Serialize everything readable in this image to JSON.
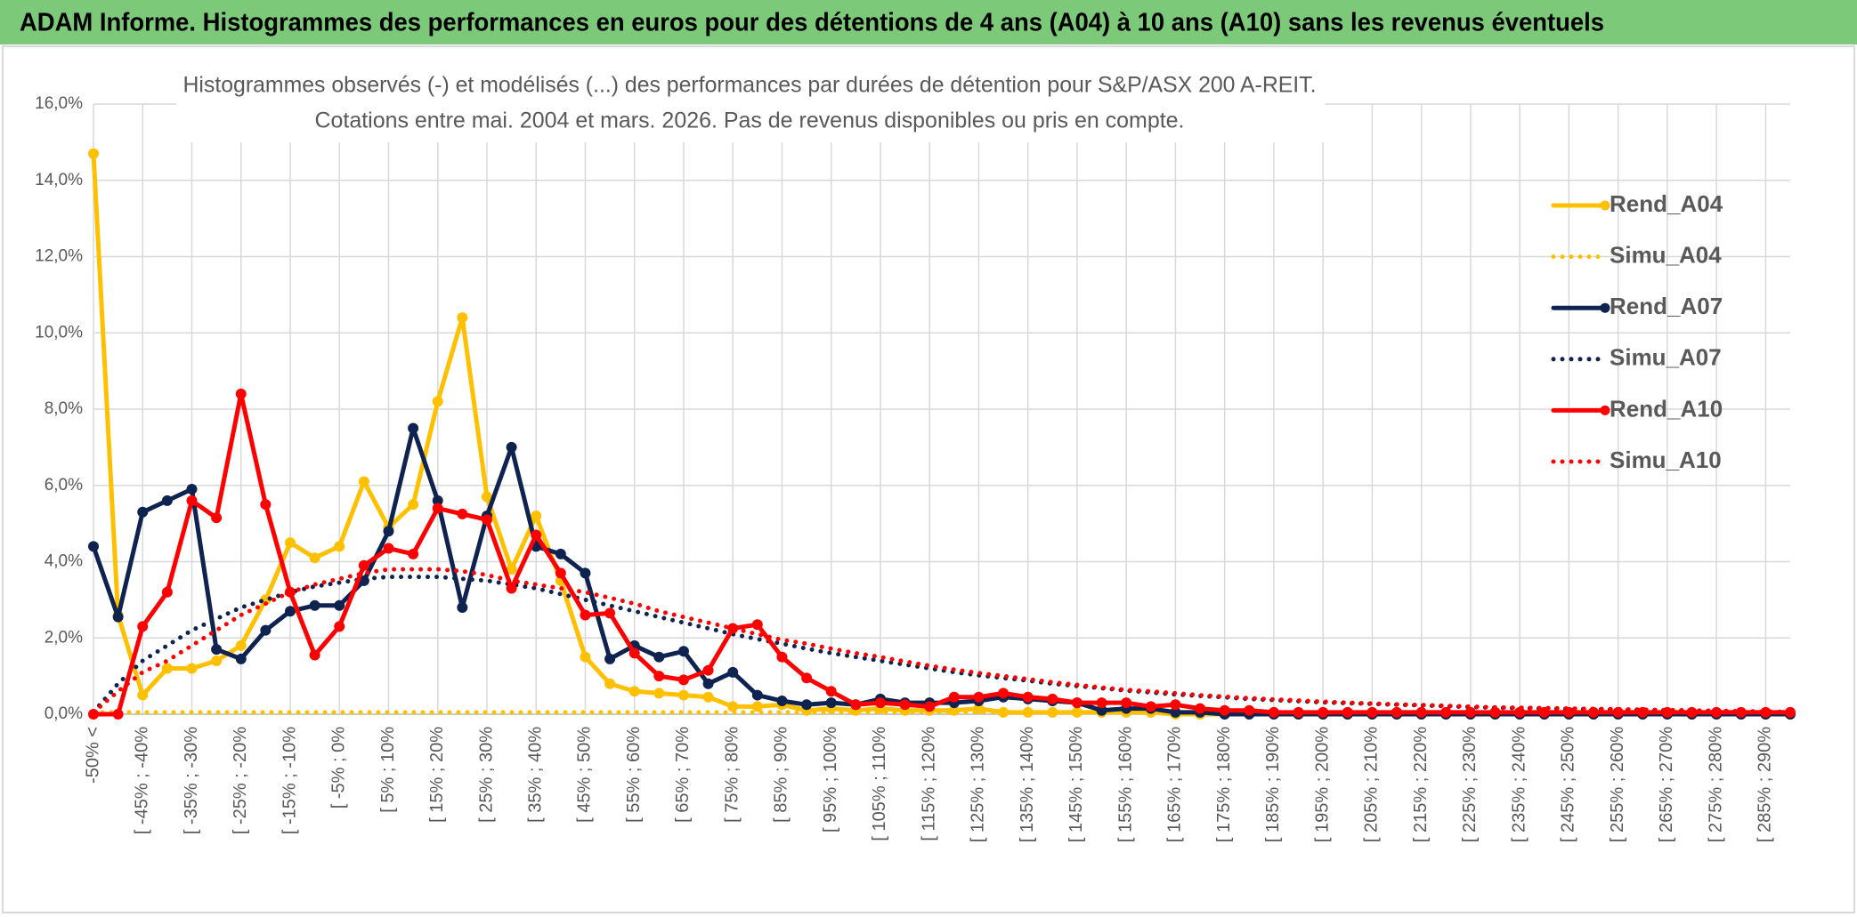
{
  "chart_data": {
    "type": "line",
    "header": "ADAM Informe. Histogrammes des performances en euros pour des détentions de 4 ans (A04) à 10 ans (A10) sans les revenus éventuels",
    "title": "Histogrammes observés (-) et modélisés (...) des performances par durées de détention pour S&P/ASX 200 A-REIT.",
    "subtitle": "Cotations entre mai. 2004 et mars. 2026. Pas de revenus disponibles ou pris en compte.",
    "categories": [
      "-50% <",
      null,
      "[ -45% ; -40%",
      null,
      "[ -35% ; -30%",
      null,
      "[ -25% ; -20%",
      null,
      "[ -15% ; -10%",
      null,
      "[ -5% ; 0%",
      null,
      "[ 5% ; 10%",
      null,
      "[ 15% ; 20%",
      null,
      "[ 25% ; 30%",
      null,
      "[ 35% ; 40%",
      null,
      "[ 45% ; 50%",
      null,
      "[ 55% ; 60%",
      null,
      "[ 65% ; 70%",
      null,
      "[ 75% ; 80%",
      null,
      "[ 85% ; 90%",
      null,
      "[ 95% ; 100%",
      null,
      "[ 105% ; 110%",
      null,
      "[ 115% ; 120%",
      null,
      "[ 125% ; 130%",
      null,
      "[ 135% ; 140%",
      null,
      "[ 145% ; 150%",
      null,
      "[ 155% ; 160%",
      null,
      "[ 165% ; 170%",
      null,
      "[ 175% ; 180%",
      null,
      "[ 185% ; 190%",
      null,
      "[ 195% ; 200%",
      null,
      "[ 205% ; 210%",
      null,
      "[ 215% ; 220%",
      null,
      "[ 225% ; 230%",
      null,
      "[ 235% ; 240%",
      null,
      "[ 245% ; 250%",
      null,
      "[ 255% ; 260%",
      null,
      "[ 265% ; 270%",
      null,
      "[ 275% ; 280%",
      null,
      "[ 285% ; 290%",
      null
    ],
    "series": [
      {
        "name": "Rend_A04",
        "color": "#ffc000",
        "line_style": "solid",
        "markers": true,
        "values": [
          14.7,
          2.6,
          0.5,
          1.2,
          1.2,
          1.4,
          1.8,
          3.0,
          4.5,
          4.1,
          4.4,
          6.1,
          4.9,
          5.5,
          8.2,
          10.4,
          5.7,
          3.8,
          5.2,
          3.5,
          1.5,
          0.8,
          0.6,
          0.55,
          0.5,
          0.45,
          0.2,
          0.2,
          0.25,
          0.1,
          0.15,
          0.1,
          0.15,
          0.1,
          0.1,
          0.1,
          0.15,
          0.05,
          0.05,
          0.05,
          0.05,
          0.05,
          0.05,
          0.05,
          0,
          0,
          0,
          0,
          0,
          0,
          0,
          0,
          0,
          0,
          0,
          0,
          0,
          0,
          0,
          0,
          0,
          0,
          0,
          0,
          0,
          0,
          0,
          0,
          0,
          0
        ]
      },
      {
        "name": "Simu_A04",
        "color": "#ffc000",
        "line_style": "dotted",
        "markers": false,
        "values": [
          0.05,
          0.05,
          0.05,
          0.05,
          0.05,
          0.05,
          0.05,
          0.05,
          0.05,
          0.05,
          0.05,
          0.05,
          0.05,
          0.05,
          0.05,
          0.05,
          0.05,
          0.05,
          0.05,
          0.05,
          0.05,
          0.05,
          0.05,
          0.05,
          0.05,
          0.05,
          0.05,
          0.05,
          0.05,
          0.05,
          0.05,
          0.05,
          0.05,
          0.05,
          0.05,
          0.05,
          0.05,
          0.05,
          0.05,
          0.05,
          0.05,
          0.05,
          0.05,
          0.05,
          0,
          0,
          0,
          0,
          0,
          0,
          0,
          0,
          0,
          0,
          0,
          0,
          0,
          0,
          0,
          0,
          0,
          0,
          0,
          0,
          0,
          0,
          0,
          0,
          0,
          0
        ]
      },
      {
        "name": "Rend_A07",
        "color": "#0f2350",
        "line_style": "solid",
        "markers": true,
        "values": [
          4.4,
          2.55,
          5.3,
          5.6,
          5.9,
          1.7,
          1.45,
          2.2,
          2.7,
          2.85,
          2.85,
          3.5,
          4.8,
          7.5,
          5.6,
          2.8,
          5.2,
          7.0,
          4.4,
          4.2,
          3.7,
          1.45,
          1.8,
          1.5,
          1.65,
          0.8,
          1.1,
          0.5,
          0.35,
          0.25,
          0.3,
          0.25,
          0.4,
          0.3,
          0.3,
          0.3,
          0.35,
          0.45,
          0.4,
          0.35,
          0.3,
          0.1,
          0.15,
          0.15,
          0.05,
          0.05,
          0,
          0,
          0,
          0,
          0,
          0,
          0,
          0,
          0,
          0,
          0,
          0,
          0,
          0,
          0,
          0,
          0,
          0,
          0,
          0,
          0,
          0,
          0,
          0
        ]
      },
      {
        "name": "Simu_A07",
        "color": "#0f2350",
        "line_style": "dotted",
        "markers": false,
        "values": [
          0.05,
          0.8,
          1.4,
          1.8,
          2.2,
          2.5,
          2.8,
          3.0,
          3.2,
          3.35,
          3.45,
          3.55,
          3.6,
          3.6,
          3.6,
          3.55,
          3.5,
          3.4,
          3.3,
          3.15,
          3.0,
          2.85,
          2.7,
          2.55,
          2.4,
          2.25,
          2.1,
          1.97,
          1.85,
          1.72,
          1.6,
          1.5,
          1.4,
          1.3,
          1.2,
          1.1,
          1.02,
          0.95,
          0.88,
          0.8,
          0.74,
          0.68,
          0.62,
          0.57,
          0.52,
          0.48,
          0.44,
          0.4,
          0.37,
          0.34,
          0.31,
          0.29,
          0.27,
          0.25,
          0.23,
          0.21,
          0.19,
          0.17,
          0.16,
          0.15,
          0.14,
          0.13,
          0.12,
          0.11,
          0.1,
          0.09,
          0.08,
          0.07,
          0.06,
          0.05
        ]
      },
      {
        "name": "Rend_A10",
        "color": "#ff0000",
        "line_style": "solid",
        "markers": true,
        "values": [
          0,
          0,
          2.3,
          3.2,
          5.6,
          5.15,
          8.4,
          5.5,
          3.2,
          1.55,
          2.3,
          3.9,
          4.35,
          4.2,
          5.4,
          5.25,
          5.1,
          3.3,
          4.7,
          3.7,
          2.6,
          2.65,
          1.6,
          1.0,
          0.9,
          1.15,
          2.25,
          2.35,
          1.5,
          0.95,
          0.6,
          0.25,
          0.3,
          0.25,
          0.2,
          0.45,
          0.45,
          0.55,
          0.45,
          0.4,
          0.3,
          0.3,
          0.3,
          0.2,
          0.25,
          0.15,
          0.1,
          0.1,
          0.05,
          0.05,
          0.05,
          0.05,
          0.05,
          0.05,
          0.05,
          0.05,
          0.05,
          0.05,
          0.05,
          0.05,
          0.05,
          0.05,
          0.05,
          0.05,
          0.05,
          0.05,
          0.05,
          0.05,
          0.05,
          0.05
        ]
      },
      {
        "name": "Simu_A10",
        "color": "#ff0000",
        "line_style": "dotted",
        "markers": false,
        "values": [
          0.05,
          0.6,
          1.1,
          1.4,
          1.8,
          2.2,
          2.6,
          2.9,
          3.2,
          3.4,
          3.55,
          3.7,
          3.8,
          3.8,
          3.8,
          3.75,
          3.65,
          3.5,
          3.4,
          3.3,
          3.2,
          3.05,
          2.9,
          2.7,
          2.55,
          2.4,
          2.25,
          2.1,
          1.95,
          1.85,
          1.72,
          1.6,
          1.5,
          1.38,
          1.27,
          1.17,
          1.08,
          1.0,
          0.92,
          0.84,
          0.77,
          0.7,
          0.64,
          0.6,
          0.55,
          0.5,
          0.46,
          0.42,
          0.39,
          0.36,
          0.33,
          0.3,
          0.28,
          0.26,
          0.24,
          0.22,
          0.2,
          0.18,
          0.17,
          0.16,
          0.15,
          0.14,
          0.13,
          0.12,
          0.11,
          0.1,
          0.09,
          0.08,
          0.07,
          0.06
        ]
      }
    ],
    "ylim": [
      0,
      16
    ],
    "yticks": [
      {
        "value": 0,
        "label": "0,0%"
      },
      {
        "value": 2,
        "label": "2,0%"
      },
      {
        "value": 4,
        "label": "4,0%"
      },
      {
        "value": 6,
        "label": "6,0%"
      },
      {
        "value": 8,
        "label": "8,0%"
      },
      {
        "value": 10,
        "label": "10,0%"
      },
      {
        "value": 12,
        "label": "12,0%"
      },
      {
        "value": 14,
        "label": "14,0%"
      },
      {
        "value": 16,
        "label": "16,0%"
      }
    ],
    "grid": true,
    "legend": "right"
  }
}
